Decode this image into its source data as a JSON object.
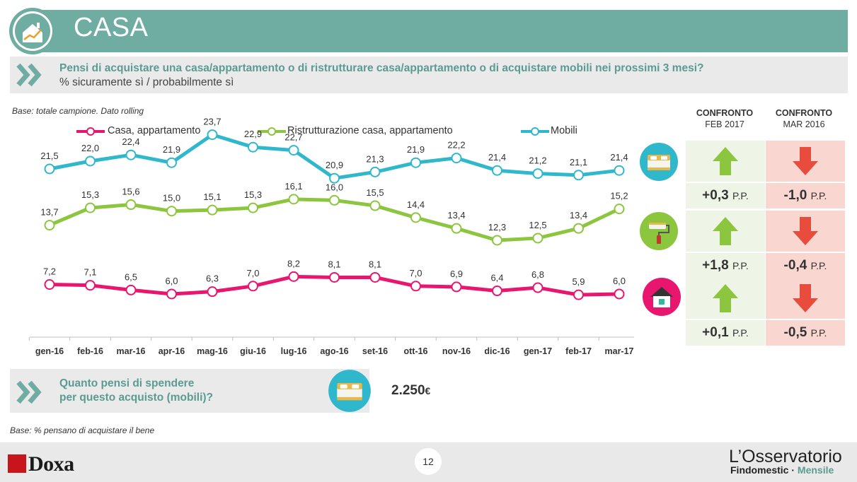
{
  "header": {
    "title": "CASA"
  },
  "question": {
    "text": "Pensi di acquistare una casa/appartamento o di ristrutturare casa/appartamento o di acquistare mobili nei prossimi 3 mesi?",
    "subtext": "% sicuramente sì / probabilmente sì"
  },
  "base_note": "Base: totale campione. Dato rolling",
  "base_note2": "Base: % pensano di acquistare il bene",
  "colors": {
    "casa": "#e8166e",
    "ristrutturazione": "#8cc63f",
    "mobili": "#2fb8cc",
    "teal": "#6fada3",
    "up": "#8cc63f",
    "down": "#e74c3c",
    "up_bg": "#eef5e6",
    "down_bg": "#f9d6d0"
  },
  "chart_data": {
    "type": "line",
    "categories": [
      "gen-16",
      "feb-16",
      "mar-16",
      "apr-16",
      "mag-16",
      "giu-16",
      "lug-16",
      "ago-16",
      "set-16",
      "ott-16",
      "nov-16",
      "dic-16",
      "gen-17",
      "feb-17",
      "mar-17"
    ],
    "series": [
      {
        "name": "Casa, appartamento",
        "values": [
          7.2,
          7.1,
          6.5,
          6.0,
          6.3,
          7.0,
          8.2,
          8.1,
          8.1,
          7.0,
          6.9,
          6.4,
          6.8,
          5.9,
          6.0
        ],
        "labels": [
          "7,2",
          "7,1",
          "6,5",
          "6,0",
          "6,3",
          "7,0",
          "8,2",
          "8,1",
          "8,1",
          "7,0",
          "6,9",
          "6,4",
          "6,8",
          "5,9",
          "6,0"
        ]
      },
      {
        "name": "Ristrutturazione casa, appartamento",
        "values": [
          13.7,
          15.3,
          15.6,
          15.0,
          15.1,
          15.3,
          16.1,
          16.0,
          15.5,
          14.4,
          13.4,
          12.3,
          12.5,
          13.4,
          15.2
        ],
        "labels": [
          "13,7",
          "15,3",
          "15,6",
          "15,0",
          "15,1",
          "15,3",
          "16,1",
          "16,0",
          "15,5",
          "14,4",
          "13,4",
          "12,3",
          "12,5",
          "13,4",
          "15,2"
        ]
      },
      {
        "name": "Mobili",
        "values": [
          21.5,
          22.0,
          22.4,
          21.9,
          23.7,
          22.9,
          22.7,
          20.9,
          21.3,
          21.9,
          22.2,
          21.4,
          21.2,
          21.1,
          21.4
        ],
        "labels": [
          "21,5",
          "22,0",
          "22,4",
          "21,9",
          "23,7",
          "22,9",
          "22,7",
          "20,9",
          "21,3",
          "21,9",
          "22,2",
          "21,4",
          "21,2",
          "21,1",
          "21,4"
        ]
      }
    ],
    "legend_position": "top",
    "grid": false
  },
  "comparison": {
    "headers": [
      {
        "line1": "CONFRONTO",
        "line2": "FEB 2017"
      },
      {
        "line1": "CONFRONTO",
        "line2": "MAR 2016"
      }
    ],
    "rows": [
      {
        "icon": "bed-icon",
        "feb_dir": "up",
        "feb_value": "+0,3",
        "mar_dir": "down",
        "mar_value": "-1,0"
      },
      {
        "icon": "paint-roller-icon",
        "feb_dir": "up",
        "feb_value": "+1,8",
        "mar_dir": "down",
        "mar_value": "-0,4"
      },
      {
        "icon": "house-icon",
        "feb_dir": "up",
        "feb_value": "+0,1",
        "mar_dir": "down",
        "mar_value": "-0,5"
      }
    ],
    "unit": "P.P."
  },
  "spend": {
    "question_line1": "Quanto pensi di spendere",
    "question_line2": "per questo acquisto (mobili)?",
    "value": "2.250",
    "currency": "€"
  },
  "footer": {
    "page": "12",
    "brand_left": "Doxa",
    "brand_right_title": "L’Osservatorio",
    "brand_right_sub1": "Findomestic · ",
    "brand_right_sub2": "Mensile"
  }
}
